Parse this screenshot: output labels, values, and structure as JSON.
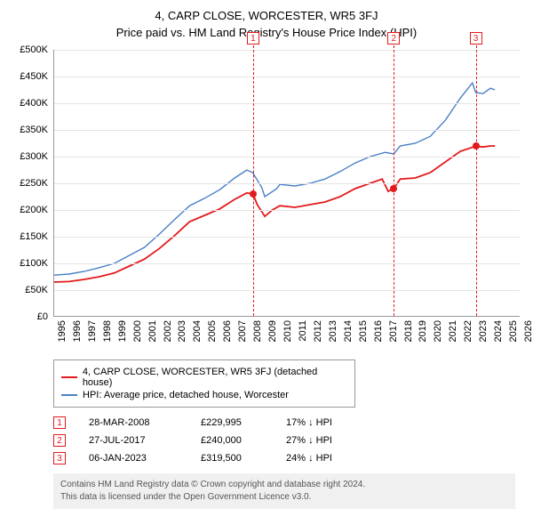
{
  "title_line1": "4, CARP CLOSE, WORCESTER, WR5 3FJ",
  "title_line2": "Price paid vs. HM Land Registry's House Price Index (HPI)",
  "chart": {
    "type": "line",
    "background_color": "#ffffff",
    "grid_color": "#e5e5e5",
    "axis_color": "#999999",
    "label_fontsize": 11,
    "xlim": [
      1995,
      2026
    ],
    "ylim": [
      0,
      500000
    ],
    "ytick_step": 50000,
    "y_axis": {
      "ticks": [
        0,
        50000,
        100000,
        150000,
        200000,
        250000,
        300000,
        350000,
        400000,
        450000,
        500000
      ],
      "labels": [
        "£0",
        "£50K",
        "£100K",
        "£150K",
        "£200K",
        "£250K",
        "£300K",
        "£350K",
        "£400K",
        "£450K",
        "£500K"
      ]
    },
    "x_axis": {
      "ticks": [
        1995,
        1996,
        1997,
        1998,
        1999,
        2000,
        2001,
        2002,
        2003,
        2004,
        2005,
        2006,
        2007,
        2008,
        2009,
        2010,
        2011,
        2012,
        2013,
        2014,
        2015,
        2016,
        2017,
        2018,
        2019,
        2020,
        2021,
        2022,
        2023,
        2024,
        2025,
        2026
      ],
      "labels": [
        "1995",
        "1996",
        "1997",
        "1998",
        "1999",
        "2000",
        "2001",
        "2002",
        "2003",
        "2004",
        "2005",
        "2006",
        "2007",
        "2008",
        "2009",
        "2010",
        "2011",
        "2012",
        "2013",
        "2014",
        "2015",
        "2016",
        "2017",
        "2018",
        "2019",
        "2020",
        "2021",
        "2022",
        "2023",
        "2024",
        "2025",
        "2026"
      ]
    },
    "series": [
      {
        "name": "property",
        "label": "4, CARP CLOSE, WORCESTER, WR5 3FJ (detached house)",
        "color": "#e31a1c",
        "line_width": 1.8,
        "points": [
          [
            1995,
            65000
          ],
          [
            1996,
            66000
          ],
          [
            1997,
            70000
          ],
          [
            1998,
            75000
          ],
          [
            1999,
            82000
          ],
          [
            2000,
            95000
          ],
          [
            2001,
            108000
          ],
          [
            2002,
            128000
          ],
          [
            2003,
            152000
          ],
          [
            2004,
            178000
          ],
          [
            2005,
            190000
          ],
          [
            2006,
            202000
          ],
          [
            2007,
            220000
          ],
          [
            2007.8,
            232000
          ],
          [
            2008.22,
            229995
          ],
          [
            2008.5,
            210000
          ],
          [
            2009,
            188000
          ],
          [
            2009.5,
            200000
          ],
          [
            2010,
            208000
          ],
          [
            2011,
            205000
          ],
          [
            2012,
            210000
          ],
          [
            2013,
            215000
          ],
          [
            2014,
            225000
          ],
          [
            2015,
            240000
          ],
          [
            2016,
            250000
          ],
          [
            2016.8,
            258000
          ],
          [
            2017.2,
            235000
          ],
          [
            2017.57,
            240000
          ],
          [
            2018,
            258000
          ],
          [
            2019,
            260000
          ],
          [
            2020,
            270000
          ],
          [
            2021,
            290000
          ],
          [
            2022,
            310000
          ],
          [
            2023.02,
            319500
          ],
          [
            2023.5,
            318000
          ],
          [
            2024,
            320000
          ],
          [
            2024.3,
            320000
          ]
        ]
      },
      {
        "name": "hpi",
        "label": "HPI: Average price, detached house, Worcester",
        "color": "#4a7fc7",
        "line_width": 1.4,
        "points": [
          [
            1995,
            78000
          ],
          [
            1996,
            80000
          ],
          [
            1997,
            85000
          ],
          [
            1998,
            92000
          ],
          [
            1999,
            100000
          ],
          [
            2000,
            115000
          ],
          [
            2001,
            130000
          ],
          [
            2002,
            155000
          ],
          [
            2003,
            182000
          ],
          [
            2004,
            208000
          ],
          [
            2005,
            222000
          ],
          [
            2006,
            238000
          ],
          [
            2007,
            260000
          ],
          [
            2007.8,
            275000
          ],
          [
            2008.2,
            270000
          ],
          [
            2008.8,
            242000
          ],
          [
            2009,
            225000
          ],
          [
            2009.8,
            240000
          ],
          [
            2010,
            248000
          ],
          [
            2011,
            245000
          ],
          [
            2012,
            250000
          ],
          [
            2013,
            258000
          ],
          [
            2014,
            272000
          ],
          [
            2015,
            288000
          ],
          [
            2016,
            300000
          ],
          [
            2017,
            308000
          ],
          [
            2017.57,
            305000
          ],
          [
            2018,
            320000
          ],
          [
            2019,
            325000
          ],
          [
            2020,
            338000
          ],
          [
            2021,
            368000
          ],
          [
            2022,
            410000
          ],
          [
            2022.8,
            438000
          ],
          [
            2023.02,
            420000
          ],
          [
            2023.5,
            418000
          ],
          [
            2024,
            428000
          ],
          [
            2024.3,
            425000
          ]
        ]
      }
    ],
    "event_markers": [
      {
        "num": "1",
        "x": 2008.22,
        "y": 229995,
        "color": "#e31a1c",
        "dash": "4,3"
      },
      {
        "num": "2",
        "x": 2017.57,
        "y": 240000,
        "color": "#e31a1c",
        "dash": "4,3"
      },
      {
        "num": "3",
        "x": 2023.02,
        "y": 319500,
        "color": "#e31a1c",
        "dash": "4,3"
      }
    ]
  },
  "legend": {
    "border_color": "#999999",
    "rows": [
      {
        "color": "#e31a1c",
        "swatch_height": 2,
        "label": "4, CARP CLOSE, WORCESTER, WR5 3FJ (detached house)"
      },
      {
        "color": "#4a7fc7",
        "swatch_height": 2,
        "label": "HPI: Average price, detached house, Worcester"
      }
    ]
  },
  "events_table": {
    "arrow_glyph": "↓",
    "rows": [
      {
        "num": "1",
        "date": "28-MAR-2008",
        "price": "£229,995",
        "pct": "17%",
        "suffix": "HPI"
      },
      {
        "num": "2",
        "date": "27-JUL-2017",
        "price": "£240,000",
        "pct": "27%",
        "suffix": "HPI"
      },
      {
        "num": "3",
        "date": "06-JAN-2023",
        "price": "£319,500",
        "pct": "24%",
        "suffix": "HPI"
      }
    ]
  },
  "attribution": {
    "background_color": "#f0f0f0",
    "text_color": "#555555",
    "line1": "Contains HM Land Registry data © Crown copyright and database right 2024.",
    "line2": "This data is licensed under the Open Government Licence v3.0."
  }
}
